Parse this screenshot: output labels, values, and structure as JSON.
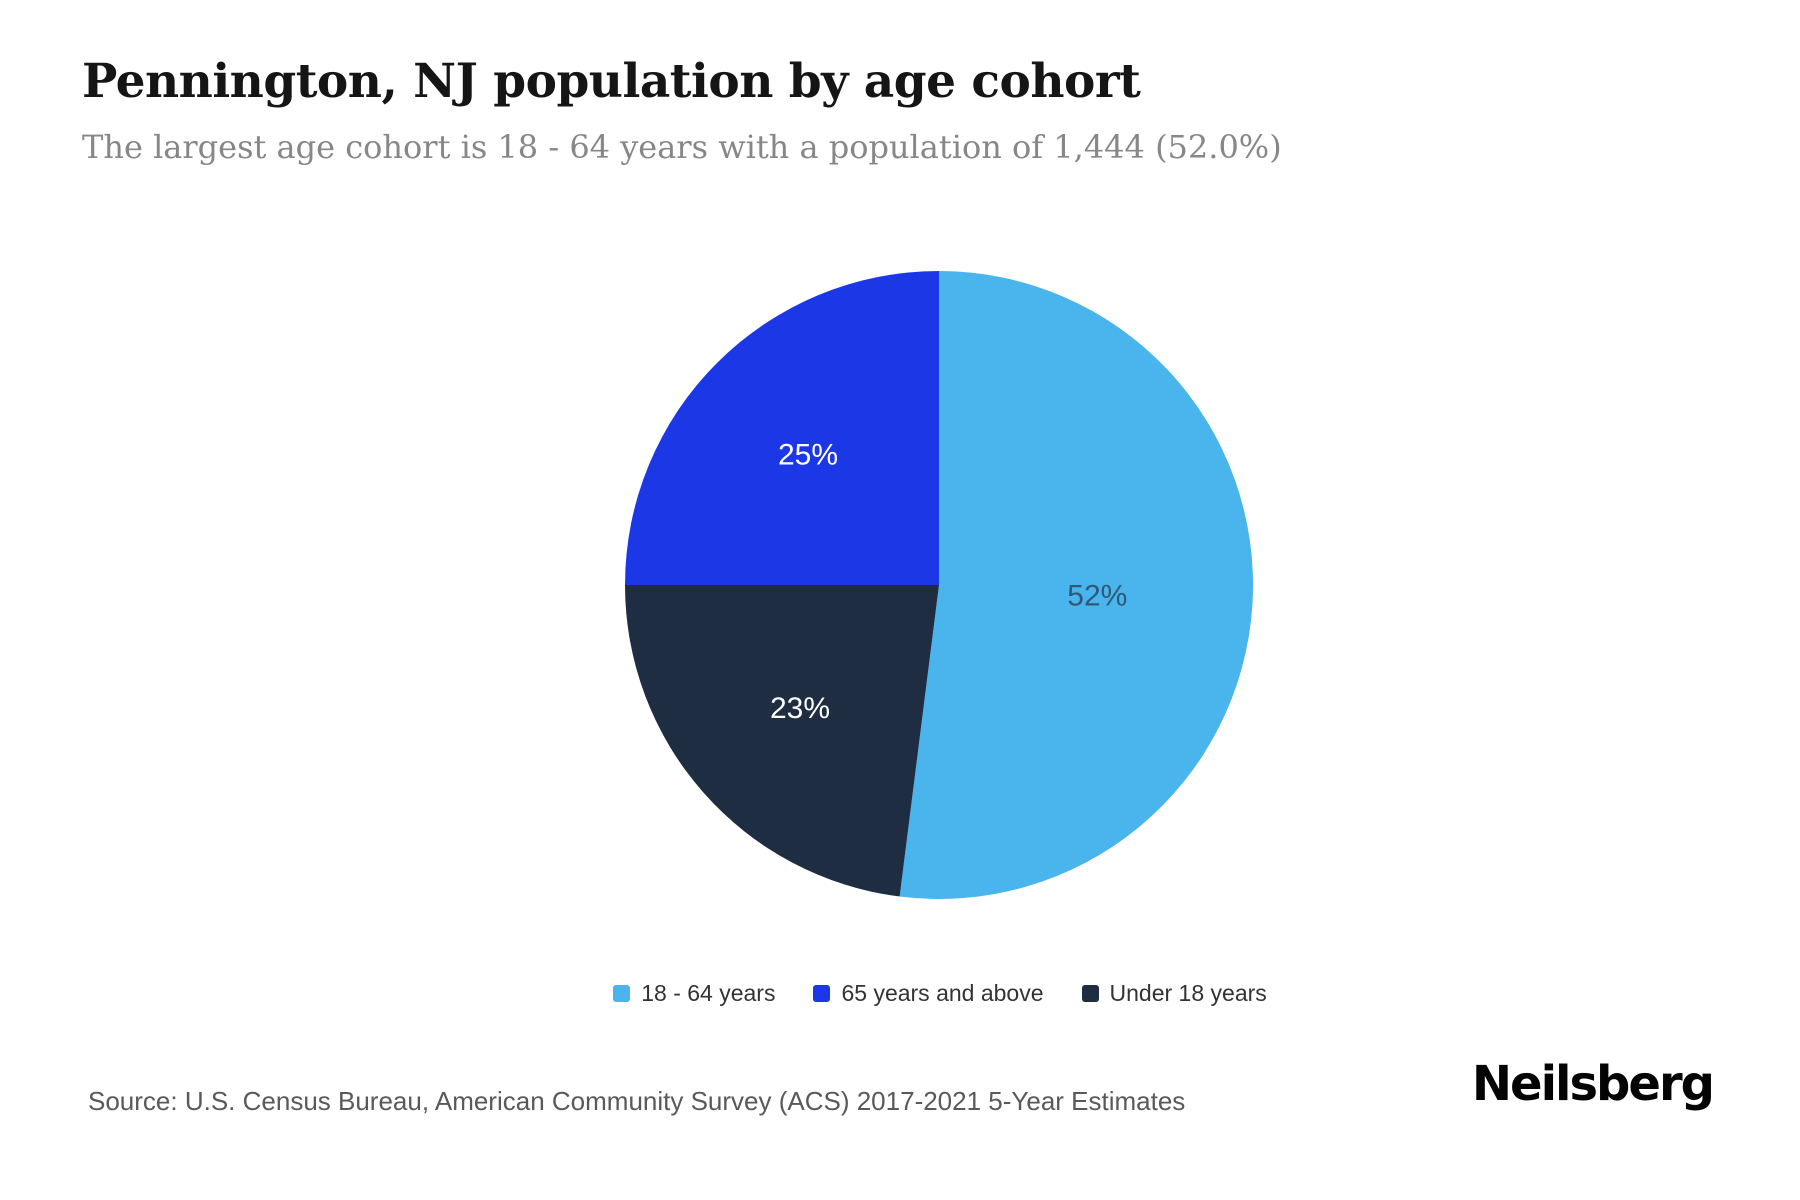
{
  "header": {
    "title": "Pennington, NJ population by age cohort",
    "subtitle": "The largest age cohort is 18 - 64 years with a population of 1,444 (52.0%)"
  },
  "chart_data": {
    "type": "pie",
    "title": "Pennington, NJ population by age cohort",
    "unit": "percent",
    "total": 100,
    "start_angle_deg": 0,
    "direction": "clockwise",
    "slices": [
      {
        "name": "18 - 64 years",
        "value": 52,
        "label": "52%",
        "color": "#49B5EC",
        "label_color": "#2E5A78"
      },
      {
        "name": "Under 18 years",
        "value": 23,
        "label": "23%",
        "color": "#1F2D43",
        "label_color": "#FFFFFF"
      },
      {
        "name": "65 years and above",
        "value": 25,
        "label": "25%",
        "color": "#1C38E6",
        "label_color": "#FFFFFF"
      }
    ],
    "legend_order": [
      0,
      2,
      1
    ],
    "legend_position": "bottom-center",
    "highlight": {
      "largest_cohort": "18 - 64 years",
      "population": "1,444",
      "share": "52.0%"
    }
  },
  "footer": {
    "source": "Source: U.S. Census Bureau, American Community Survey (ACS) 2017-2021 5-Year Estimates",
    "brand": "Neilsberg"
  },
  "theme": {
    "background": "#FFFFFF",
    "title_color": "#151515",
    "subtitle_color": "#878787",
    "legend_text_color": "#333333",
    "source_text_color": "#595959",
    "brand_color": "#040404"
  }
}
